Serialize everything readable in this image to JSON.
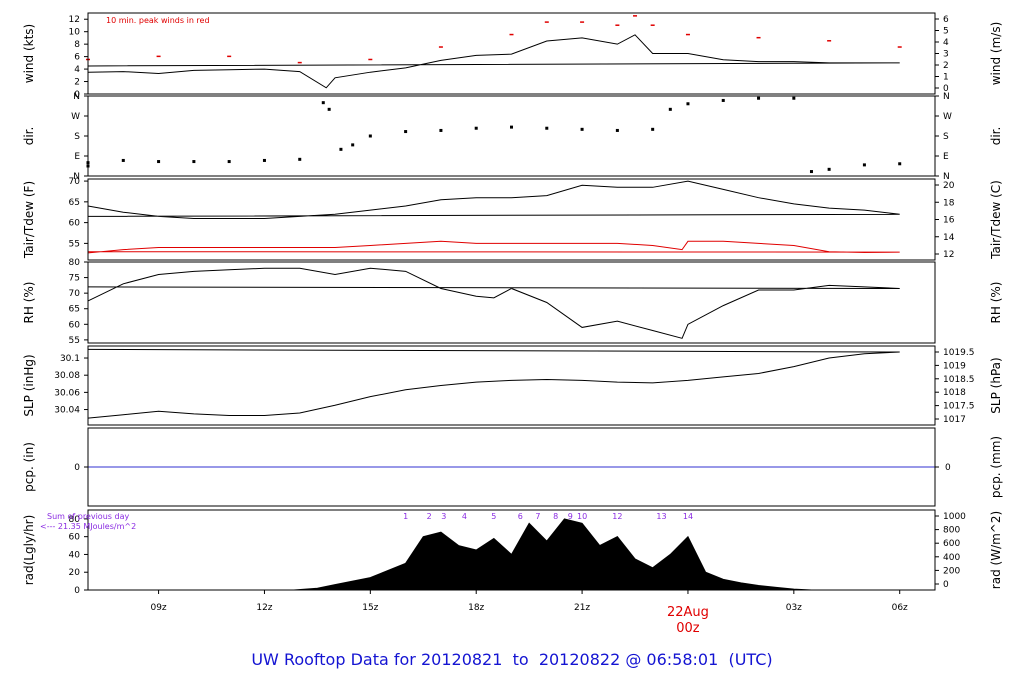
{
  "title": {
    "prefix": "UW Rooftop Data for",
    "start": "20120821",
    "to": "to",
    "end": "20120822",
    "at": "@ 06:58:01",
    "tz": "(UTC)"
  },
  "date_marker": {
    "day": "22Aug",
    "time": "00z"
  },
  "colors": {
    "frame": "#000000",
    "series": "#000000",
    "accent_red": "#e00000",
    "precip_line": "#3030d0",
    "title": "#1414d2",
    "annot_purple": "#8a2be2"
  },
  "chart_data": [
    {
      "type": "line",
      "ylabel": "wind (kts)",
      "ylabel_right": "wind (m/s)",
      "annotation": "10 min. peak winds in red",
      "x_ticks": [
        "09z",
        "12z",
        "15z",
        "18z",
        "21z",
        "22Aug 00z",
        "03z",
        "06z"
      ],
      "xlim": [
        "20120821 07:00",
        "20120822 07:00"
      ],
      "ylim": [
        0,
        13
      ],
      "y_ticks": [
        0,
        2,
        4,
        6,
        8,
        10,
        12
      ],
      "y_ticks_right": [
        0,
        1,
        2,
        3,
        4,
        5,
        6
      ],
      "series": [
        {
          "color": "#000000",
          "x": [
            "07:00",
            "08:00",
            "09:00",
            "10:00",
            "11:00",
            "12:00",
            "13:00",
            "13:45",
            "14:00",
            "15:00",
            "16:00",
            "17:00",
            "18:00",
            "19:00",
            "20:00",
            "21:00",
            "22:00",
            "22:30",
            "23:00",
            "00:00",
            "01:00",
            "02:00",
            "03:00",
            "04:00",
            "05:00",
            "06:00",
            "07:00"
          ],
          "values": [
            3.5,
            3.6,
            3.3,
            3.8,
            3.9,
            4.0,
            3.6,
            1.0,
            2.6,
            3.5,
            4.2,
            5.4,
            6.2,
            6.4,
            8.5,
            9.0,
            8.0,
            9.5,
            6.5,
            6.5,
            5.5,
            5.2,
            5.2,
            5.0,
            5.0,
            5.0,
            4.5
          ]
        },
        {
          "color": "#e00000",
          "style": "markers",
          "x": [
            "07:00",
            "09:00",
            "11:00",
            "13:00",
            "15:00",
            "17:00",
            "19:00",
            "20:00",
            "21:00",
            "22:00",
            "22:30",
            "23:00",
            "00:00",
            "02:00",
            "04:00",
            "06:00"
          ],
          "values": [
            5.5,
            6,
            6,
            5,
            5.5,
            7.5,
            9.5,
            11.5,
            11.5,
            11,
            12.5,
            11,
            9.5,
            9,
            8.5,
            7.5
          ]
        }
      ]
    },
    {
      "type": "scatter",
      "ylabel": "dir.",
      "ylabel_right": "dir.",
      "y_ticks": [
        "N",
        "E",
        "S",
        "W",
        "N"
      ],
      "ylim": [
        0,
        360
      ],
      "series": [
        {
          "color": "#000000",
          "x": [
            "07:00",
            "08:00",
            "09:00",
            "10:00",
            "11:00",
            "12:00",
            "13:00",
            "13:40",
            "13:50",
            "14:10",
            "14:30",
            "15:00",
            "16:00",
            "17:00",
            "18:00",
            "19:00",
            "20:00",
            "21:00",
            "22:00",
            "23:00",
            "23:30",
            "00:00",
            "01:00",
            "02:00",
            "03:00",
            "03:30",
            "04:00",
            "05:00",
            "06:00",
            "07:00"
          ],
          "values": [
            60,
            70,
            65,
            65,
            65,
            70,
            75,
            330,
            300,
            120,
            140,
            180,
            200,
            205,
            215,
            220,
            215,
            210,
            205,
            210,
            300,
            325,
            340,
            350,
            350,
            20,
            30,
            50,
            55,
            45
          ]
        }
      ]
    },
    {
      "type": "line",
      "ylabel": "Tair/Tdew (F)",
      "ylabel_right": "Tair/Tdew (C)",
      "ylim": [
        51,
        70.5
      ],
      "y_ticks": [
        55,
        60,
        65,
        70
      ],
      "y_ticks_right": [
        12,
        14,
        16,
        18,
        20
      ],
      "series": [
        {
          "name": "Tair",
          "color": "#000000",
          "x": [
            "07:00",
            "08:00",
            "09:00",
            "10:00",
            "11:00",
            "12:00",
            "13:00",
            "14:00",
            "15:00",
            "16:00",
            "17:00",
            "18:00",
            "19:00",
            "20:00",
            "21:00",
            "22:00",
            "23:00",
            "00:00",
            "01:00",
            "02:00",
            "03:00",
            "04:00",
            "05:00",
            "06:00",
            "07:00"
          ],
          "values": [
            64,
            62.5,
            61.5,
            61,
            61,
            61,
            61.5,
            62,
            63,
            64,
            65.5,
            66,
            66,
            66.5,
            69,
            68.5,
            68.5,
            70,
            68,
            66,
            64.5,
            63.5,
            63,
            62,
            61.5
          ]
        },
        {
          "name": "Tdew",
          "color": "#e00000",
          "x": [
            "07:00",
            "08:00",
            "09:00",
            "10:00",
            "11:00",
            "12:00",
            "13:00",
            "14:00",
            "15:00",
            "16:00",
            "17:00",
            "18:00",
            "19:00",
            "20:00",
            "21:00",
            "22:00",
            "23:00",
            "23:50",
            "00:00",
            "01:00",
            "02:00",
            "03:00",
            "04:00",
            "05:00",
            "06:00",
            "07:00"
          ],
          "values": [
            52.7,
            53.5,
            54,
            54,
            54,
            54,
            54,
            54,
            54.5,
            55,
            55.5,
            55,
            55,
            55,
            55,
            55,
            54.5,
            53.5,
            55.5,
            55.5,
            55,
            54.5,
            53,
            52.8,
            52.9,
            53
          ]
        }
      ]
    },
    {
      "type": "line",
      "ylabel": "RH (%)",
      "ylabel_right": "RH (%)",
      "ylim": [
        54,
        80
      ],
      "y_ticks": [
        55,
        60,
        65,
        70,
        75,
        80
      ],
      "series": [
        {
          "color": "#000000",
          "x": [
            "07:00",
            "08:00",
            "09:00",
            "10:00",
            "11:00",
            "12:00",
            "13:00",
            "14:00",
            "15:00",
            "16:00",
            "17:00",
            "18:00",
            "18:30",
            "19:00",
            "20:00",
            "21:00",
            "22:00",
            "23:00",
            "23:50",
            "00:00",
            "01:00",
            "02:00",
            "03:00",
            "04:00",
            "05:00",
            "06:00",
            "07:00"
          ],
          "values": [
            67.5,
            73,
            76,
            77,
            77.5,
            78,
            78,
            76,
            78,
            77,
            71.5,
            69,
            68.5,
            71.5,
            67,
            59,
            61,
            58,
            55.5,
            60,
            66,
            71,
            71,
            72.5,
            72,
            71.5,
            72
          ]
        }
      ]
    },
    {
      "type": "line",
      "ylabel": "SLP (inHg)",
      "ylabel_right": "SLP (hPa)",
      "ylim": [
        30.022,
        30.114
      ],
      "y_ticks": [
        30.04,
        30.06,
        30.08,
        30.1
      ],
      "y_ticks_right": [
        1017,
        1017.5,
        1018,
        1018.5,
        1019,
        1019.5
      ],
      "series": [
        {
          "color": "#000000",
          "x": [
            "07:00",
            "08:00",
            "09:00",
            "10:00",
            "11:00",
            "12:00",
            "13:00",
            "14:00",
            "15:00",
            "16:00",
            "17:00",
            "18:00",
            "19:00",
            "20:00",
            "21:00",
            "22:00",
            "23:00",
            "00:00",
            "01:00",
            "02:00",
            "03:00",
            "04:00",
            "05:00",
            "06:00",
            "07:00"
          ],
          "values": [
            30.03,
            30.034,
            30.038,
            30.035,
            30.033,
            30.033,
            30.036,
            30.045,
            30.055,
            30.063,
            30.068,
            30.072,
            30.074,
            30.075,
            30.074,
            30.072,
            30.071,
            30.074,
            30.078,
            30.082,
            30.09,
            30.1,
            30.105,
            30.107,
            30.11
          ]
        }
      ]
    },
    {
      "type": "line",
      "ylabel": "pcp. (in)",
      "ylabel_right": "pcp. (mm)",
      "ylim": [
        -1,
        1
      ],
      "y_ticks": [
        0
      ],
      "y_ticks_right": [
        0
      ],
      "series": [
        {
          "color": "#3030d0",
          "x": [
            "07:00",
            "07:00"
          ],
          "values": [
            0,
            0
          ]
        }
      ]
    },
    {
      "type": "area",
      "ylabel": "rad(Lgly/hr)",
      "ylabel_right": "rad (W/m^2)",
      "ylim": [
        0,
        90
      ],
      "y_ticks": [
        0,
        20,
        40,
        60,
        80
      ],
      "y_ticks_right": [
        0,
        200,
        400,
        600,
        800,
        1000
      ],
      "annotation_line1": "Sum of previous day",
      "annotation_line2": "<--- 21.35 MJoules/m^2",
      "peak_markers": [
        "1",
        "2",
        "3",
        "4",
        "5",
        "6",
        "7",
        "8",
        "9",
        "10",
        "12",
        "13",
        "14"
      ],
      "peak_marker_x": [
        "16:00",
        "16:40",
        "17:05",
        "17:40",
        "18:30",
        "19:15",
        "19:45",
        "20:15",
        "20:40",
        "21:00",
        "22:00",
        "23:15",
        "00:00"
      ],
      "series": [
        {
          "color": "#000000",
          "x": [
            "12:50",
            "13:30",
            "14:00",
            "14:30",
            "15:00",
            "15:30",
            "16:00",
            "16:30",
            "17:00",
            "17:30",
            "18:00",
            "18:30",
            "19:00",
            "19:30",
            "20:00",
            "20:30",
            "21:00",
            "21:30",
            "22:00",
            "22:30",
            "23:00",
            "23:30",
            "00:00",
            "00:30",
            "01:00",
            "01:30",
            "02:00",
            "02:30",
            "03:00",
            "03:30"
          ],
          "values": [
            0,
            2,
            6,
            10,
            14,
            22,
            30,
            60,
            65,
            50,
            45,
            58,
            40,
            75,
            55,
            80,
            75,
            50,
            60,
            35,
            25,
            40,
            60,
            20,
            12,
            8,
            5,
            3,
            1,
            0
          ]
        }
      ]
    }
  ]
}
